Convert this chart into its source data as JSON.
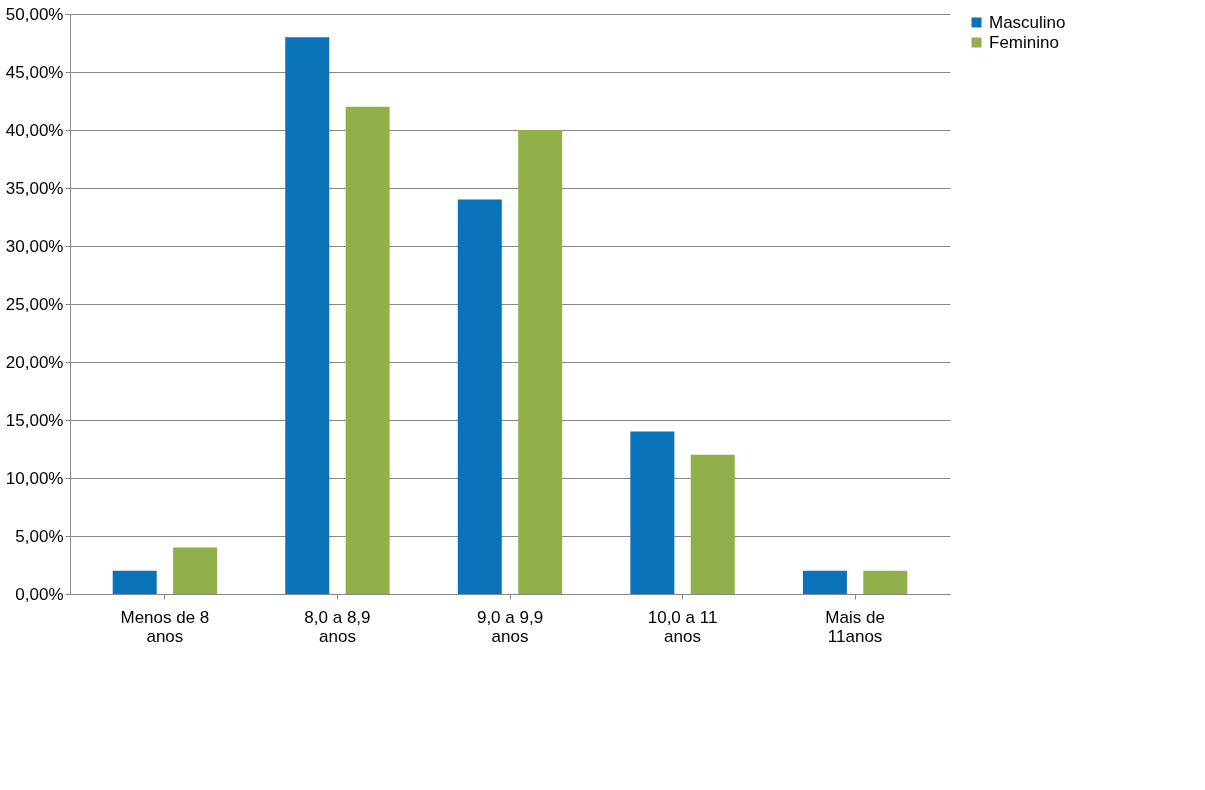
{
  "chart_data": {
    "type": "bar",
    "categories": [
      "Menos de 8\nanos",
      "8,0 a 8,9\nanos",
      "9,0 a 9,9\nanos",
      "10,0 a 11\nanos",
      "Mais de\n11anos"
    ],
    "series": [
      {
        "name": "Masculino",
        "color": "#0a72b8",
        "values": [
          2,
          48,
          34,
          14,
          2
        ]
      },
      {
        "name": "Feminino",
        "color": "#8fb04a",
        "values": [
          4,
          42,
          40,
          12,
          2
        ]
      }
    ],
    "ylim": [
      0,
      50
    ],
    "yticks": [
      {
        "value": 0,
        "label": "0,00%"
      },
      {
        "value": 5,
        "label": "5,00%"
      },
      {
        "value": 10,
        "label": "10,00%"
      },
      {
        "value": 15,
        "label": "15,00%"
      },
      {
        "value": 20,
        "label": "20,00%"
      },
      {
        "value": 25,
        "label": "25,00%"
      },
      {
        "value": 30,
        "label": "30,00%"
      },
      {
        "value": 35,
        "label": "35,00%"
      },
      {
        "value": 40,
        "label": "40,00%"
      },
      {
        "value": 45,
        "label": "45,00%"
      },
      {
        "value": 50,
        "label": "50,00%"
      }
    ],
    "grid": "y",
    "legend": "right"
  }
}
